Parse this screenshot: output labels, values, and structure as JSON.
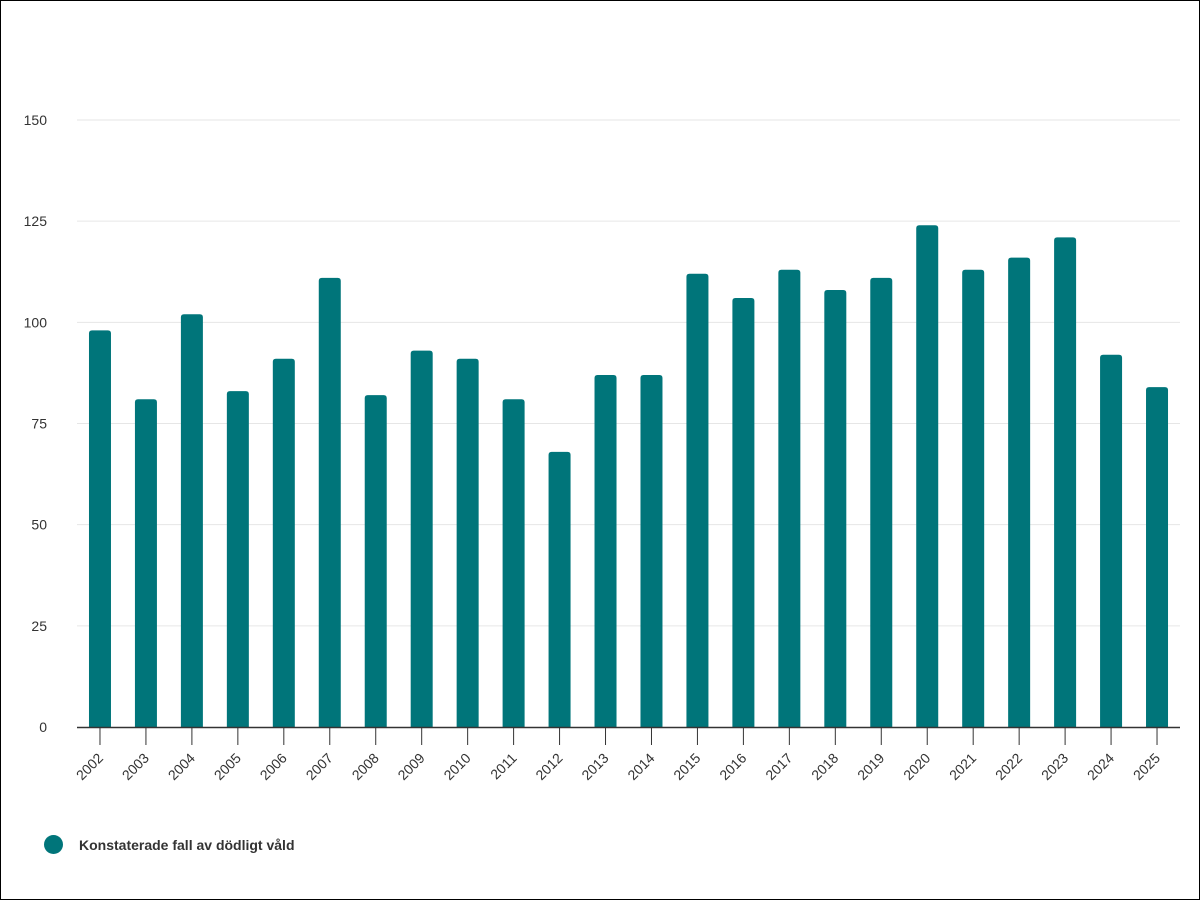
{
  "chart_data": {
    "type": "bar",
    "categories": [
      "2002",
      "2003",
      "2004",
      "2005",
      "2006",
      "2007",
      "2008",
      "2009",
      "2010",
      "2011",
      "2012",
      "2013",
      "2014",
      "2015",
      "2016",
      "2017",
      "2018",
      "2019",
      "2020",
      "2021",
      "2022",
      "2023",
      "2024",
      "2025"
    ],
    "series": [
      {
        "name": "Konstaterade fall av dödligt våld",
        "values": [
          98,
          81,
          102,
          83,
          91,
          111,
          82,
          93,
          91,
          81,
          68,
          87,
          87,
          112,
          106,
          113,
          108,
          111,
          124,
          113,
          116,
          121,
          92,
          84
        ],
        "color": "#00757a"
      }
    ],
    "title": "",
    "xlabel": "",
    "ylabel": "",
    "ylim": [
      0,
      150
    ],
    "yticks": [
      0,
      25,
      50,
      75,
      100,
      125,
      150
    ],
    "grid": true,
    "legend": "bottom-left"
  }
}
